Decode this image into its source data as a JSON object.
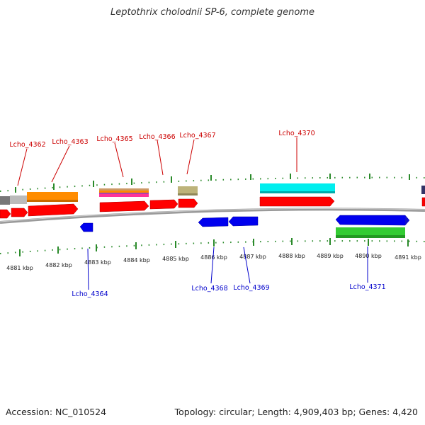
{
  "title": "Leptothrix cholodnii SP-6, complete genome",
  "footer": {
    "accession": "Accession: NC_010524",
    "summary": "Topology: circular; Length: 4,909,403 bp; Genes: 4,420"
  },
  "colors": {
    "forward_label": "#cc0000",
    "reverse_label": "#0000cc",
    "tick": "#228822",
    "backbone": "#888888",
    "forward_cds": "#ff0000",
    "reverse_cds": "#0000ee"
  },
  "ruler_ticks": [
    "4881 kbp",
    "4882 kbp",
    "4883 kbp",
    "4884 kbp",
    "4885 kbp",
    "4886 kbp",
    "4887 kbp",
    "4888 kbp",
    "4889 kbp",
    "4890 kbp",
    "4891 kbp"
  ],
  "gene_labels_forward": [
    "Lcho_4362",
    "Lcho_4363",
    "Lcho_4365",
    "Lcho_4366",
    "Lcho_4367",
    "Lcho_4370"
  ],
  "gene_labels_reverse": [
    "Lcho_4364",
    "Lcho_4368",
    "Lcho_4369",
    "Lcho_4371"
  ]
}
